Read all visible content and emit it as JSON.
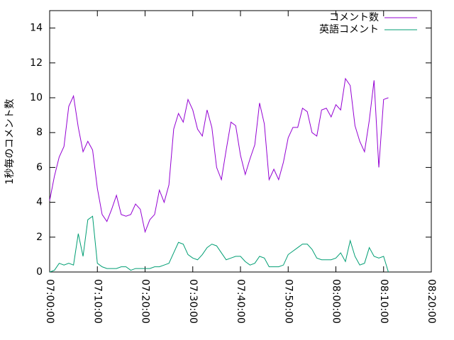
{
  "chart_data": {
    "type": "line",
    "ylabel": "1秒毎のコメント数",
    "x": [
      "07:00:00",
      "07:01:00",
      "07:02:00",
      "07:03:00",
      "07:04:00",
      "07:05:00",
      "07:06:00",
      "07:07:00",
      "07:08:00",
      "07:09:00",
      "07:10:00",
      "07:11:00",
      "07:12:00",
      "07:13:00",
      "07:14:00",
      "07:15:00",
      "07:16:00",
      "07:17:00",
      "07:18:00",
      "07:19:00",
      "07:20:00",
      "07:21:00",
      "07:22:00",
      "07:23:00",
      "07:24:00",
      "07:25:00",
      "07:26:00",
      "07:27:00",
      "07:28:00",
      "07:29:00",
      "07:30:00",
      "07:31:00",
      "07:32:00",
      "07:33:00",
      "07:34:00",
      "07:35:00",
      "07:36:00",
      "07:37:00",
      "07:38:00",
      "07:39:00",
      "07:40:00",
      "07:41:00",
      "07:42:00",
      "07:43:00",
      "07:44:00",
      "07:45:00",
      "07:46:00",
      "07:47:00",
      "07:48:00",
      "07:49:00",
      "07:50:00",
      "07:51:00",
      "07:52:00",
      "07:53:00",
      "07:54:00",
      "07:55:00",
      "07:56:00",
      "07:57:00",
      "07:58:00",
      "07:59:00",
      "08:00:00",
      "08:01:00",
      "08:02:00",
      "08:03:00",
      "08:04:00",
      "08:05:00",
      "08:06:00",
      "08:07:00",
      "08:08:00",
      "08:09:00",
      "08:10:00",
      "08:11:00"
    ],
    "series": [
      {
        "name": "コメント数",
        "color": "#9400d3",
        "values": [
          4.1,
          5.5,
          6.6,
          7.2,
          9.5,
          10.1,
          8.3,
          6.9,
          7.5,
          7.0,
          4.8,
          3.3,
          2.9,
          3.6,
          4.4,
          3.3,
          3.2,
          3.3,
          3.9,
          3.6,
          2.3,
          3.0,
          3.3,
          4.7,
          4.0,
          5.0,
          8.2,
          9.1,
          8.6,
          9.9,
          9.3,
          8.2,
          7.8,
          9.3,
          8.3,
          6.0,
          5.3,
          7.0,
          8.6,
          8.4,
          6.7,
          5.6,
          6.5,
          7.3,
          9.7,
          8.5,
          5.3,
          5.9,
          5.3,
          6.3,
          7.7,
          8.3,
          8.3,
          9.4,
          9.2,
          8.0,
          7.8,
          9.3,
          9.4,
          8.9,
          9.6,
          9.3,
          11.1,
          10.7,
          8.4,
          7.5,
          6.9,
          8.7,
          11.0,
          6.0,
          9.9,
          10.0
        ]
      },
      {
        "name": "英語コメント",
        "color": "#009e73",
        "values": [
          0,
          0.1,
          0.5,
          0.4,
          0.5,
          0.4,
          2.2,
          0.9,
          3.0,
          3.2,
          0.5,
          0.3,
          0.2,
          0.2,
          0.2,
          0.3,
          0.3,
          0.1,
          0.2,
          0.2,
          0.2,
          0.2,
          0.3,
          0.3,
          0.4,
          0.5,
          1.1,
          1.7,
          1.6,
          1.0,
          0.8,
          0.7,
          1.0,
          1.4,
          1.6,
          1.5,
          1.1,
          0.7,
          0.8,
          0.9,
          0.9,
          0.6,
          0.4,
          0.5,
          0.9,
          0.8,
          0.3,
          0.3,
          0.3,
          0.4,
          1.0,
          1.2,
          1.4,
          1.6,
          1.6,
          1.3,
          0.8,
          0.7,
          0.7,
          0.7,
          0.8,
          1.1,
          0.6,
          1.8,
          0.9,
          0.4,
          0.5,
          1.4,
          0.9,
          0.8,
          0.9,
          0.0
        ]
      }
    ],
    "xlim": [
      "07:00:00",
      "08:20:00"
    ],
    "xticks": [
      "07:00:00",
      "07:10:00",
      "07:20:00",
      "07:30:00",
      "07:40:00",
      "07:50:00",
      "08:00:00",
      "08:10:00",
      "08:20:00"
    ],
    "ylim": [
      0,
      15
    ],
    "yticks": [
      0,
      2,
      4,
      6,
      8,
      10,
      12,
      14
    ],
    "grid": false,
    "legend": "top-right"
  }
}
